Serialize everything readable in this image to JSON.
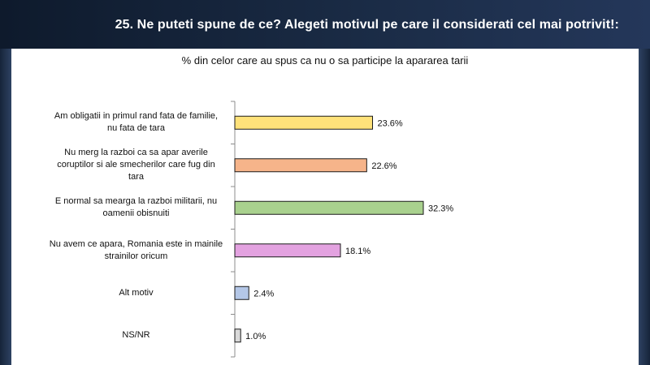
{
  "header": {
    "title": "25. Ne puteti spune de ce? Alegeti motivul pe care il considerati cel mai potrivit!:"
  },
  "chart_data": {
    "type": "bar",
    "orientation": "horizontal",
    "title": "% din celor care au spus ca nu o sa participe la apararea tarii",
    "categories": [
      "Am obligatii in primul rand fata de familie, nu fata de tara",
      "Nu merg la razboi ca sa apar averile coruptilor si ale smecherilor care fug din tara",
      "E normal sa mearga la razboi militarii, nu oamenii obisnuiti",
      "Nu avem ce apara, Romania este in mainile strainilor oricum",
      "Alt motiv",
      "NS/NR"
    ],
    "values": [
      23.6,
      22.6,
      32.3,
      18.1,
      2.4,
      1.0
    ],
    "value_labels": [
      "23.6%",
      "22.6%",
      "32.3%",
      "18.1%",
      "2.4%",
      "1.0%"
    ],
    "colors": [
      "#ffe27a",
      "#f6b48a",
      "#a9d18e",
      "#e3a2e0",
      "#b4c7e7",
      "#d9d9d9"
    ],
    "xlim": [
      0,
      32.3
    ],
    "grid": false,
    "legend": "none"
  }
}
